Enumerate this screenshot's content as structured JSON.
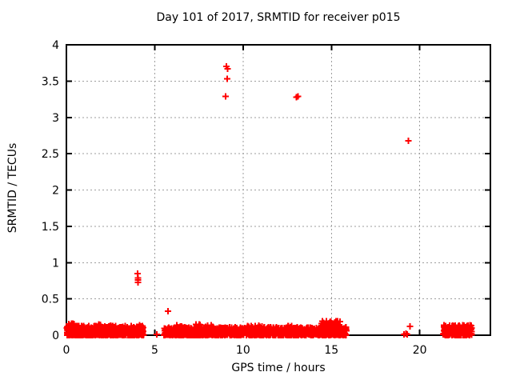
{
  "chart_data": {
    "type": "scatter",
    "title": "Day 101 of 2017, SRMTID for receiver p015",
    "xlabel": "GPS time / hours",
    "ylabel": "SRMTID / TECUs",
    "xlim": [
      0,
      24
    ],
    "ylim": [
      0,
      4
    ],
    "xticks": [
      0,
      5,
      10,
      15,
      20
    ],
    "xtick_labels": [
      "0",
      "5",
      "10",
      "15",
      "20"
    ],
    "yticks": [
      0,
      0.5,
      1,
      1.5,
      2,
      2.5,
      3,
      3.5,
      4
    ],
    "ytick_labels": [
      "0",
      "0.5",
      "1",
      "1.5",
      "2",
      "2.5",
      "3",
      "3.5",
      "4"
    ],
    "grid": true,
    "legend": "none",
    "marker": "plus",
    "marker_color": "#ff0000",
    "grid_color": "#9e9e9e",
    "border_color": "#000000",
    "background_color": "#ffffff",
    "outlier_points": [
      [
        4.04,
        0.85
      ],
      [
        4.06,
        0.79
      ],
      [
        4.05,
        0.76
      ],
      [
        4.05,
        0.73
      ],
      [
        4.15,
        0.14
      ],
      [
        5.12,
        0.01
      ],
      [
        5.75,
        0.33
      ],
      [
        9.05,
        3.7
      ],
      [
        9.13,
        3.67
      ],
      [
        9.1,
        3.53
      ],
      [
        9.02,
        3.29
      ],
      [
        13.02,
        3.28
      ],
      [
        13.1,
        3.29
      ],
      [
        19.35,
        2.68
      ],
      [
        19.12,
        0.01
      ],
      [
        19.22,
        0.02
      ],
      [
        19.3,
        0.01
      ],
      [
        19.45,
        0.12
      ],
      [
        21.32,
        0.01
      ]
    ],
    "noise_seed": 42,
    "noise_bands": [
      {
        "x0": 0.02,
        "x1": 4.38,
        "n": 520,
        "ymin": 0.0,
        "ymax": 0.13
      },
      {
        "x0": 0.02,
        "x1": 0.45,
        "n": 45,
        "ymin": 0.0,
        "ymax": 0.16
      },
      {
        "x0": 1.3,
        "x1": 2.6,
        "n": 60,
        "ymin": 0.0,
        "ymax": 0.15
      },
      {
        "x0": 5.52,
        "x1": 15.85,
        "n": 1250,
        "ymin": 0.0,
        "ymax": 0.11
      },
      {
        "x0": 6.2,
        "x1": 6.6,
        "n": 40,
        "ymin": 0.0,
        "ymax": 0.14
      },
      {
        "x0": 7.3,
        "x1": 8.3,
        "n": 70,
        "ymin": 0.0,
        "ymax": 0.15
      },
      {
        "x0": 10.2,
        "x1": 11.1,
        "n": 60,
        "ymin": 0.0,
        "ymax": 0.14
      },
      {
        "x0": 12.5,
        "x1": 13.1,
        "n": 50,
        "ymin": 0.0,
        "ymax": 0.13
      },
      {
        "x0": 14.4,
        "x1": 15.5,
        "n": 110,
        "ymin": 0.02,
        "ymax": 0.2
      },
      {
        "x0": 21.35,
        "x1": 22.95,
        "n": 190,
        "ymin": 0.0,
        "ymax": 0.14
      }
    ]
  }
}
